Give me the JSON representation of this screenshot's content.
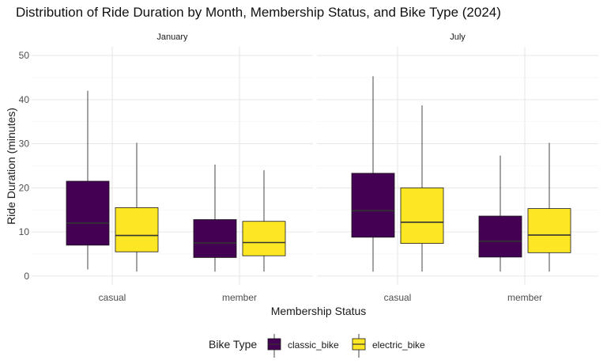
{
  "chart_data": {
    "type": "boxplot",
    "title": "Distribution of Ride Duration by Month, Membership Status, and Bike Type (2024)",
    "xlabel": "Membership Status",
    "ylabel": "Ride Duration (minutes)",
    "ylim": [
      -2,
      52
    ],
    "yticks": [
      0,
      10,
      20,
      30,
      40,
      50
    ],
    "grid": true,
    "legend_position": "bottom",
    "legend_title": "Bike Type",
    "categories": [
      "casual",
      "member"
    ],
    "series": [
      {
        "name": "classic_bike",
        "color": "#440154"
      },
      {
        "name": "electric_bike",
        "color": "#FDE725"
      }
    ],
    "facets": [
      {
        "label": "January",
        "groups": [
          {
            "category": "casual",
            "boxes": [
              {
                "series": "classic_bike",
                "min": 1.5,
                "q1": 7.0,
                "median": 12.0,
                "q3": 21.5,
                "max": 42.0
              },
              {
                "series": "electric_bike",
                "min": 1.0,
                "q1": 5.5,
                "median": 9.2,
                "q3": 15.5,
                "max": 30.2
              }
            ]
          },
          {
            "category": "member",
            "boxes": [
              {
                "series": "classic_bike",
                "min": 1.0,
                "q1": 4.2,
                "median": 7.5,
                "q3": 12.8,
                "max": 25.3
              },
              {
                "series": "electric_bike",
                "min": 1.0,
                "q1": 4.6,
                "median": 7.6,
                "q3": 12.4,
                "max": 24.0
              }
            ]
          }
        ]
      },
      {
        "label": "July",
        "groups": [
          {
            "category": "casual",
            "boxes": [
              {
                "series": "classic_bike",
                "min": 1.0,
                "q1": 8.8,
                "median": 14.8,
                "q3": 23.3,
                "max": 45.3
              },
              {
                "series": "electric_bike",
                "min": 1.0,
                "q1": 7.4,
                "median": 12.2,
                "q3": 20.0,
                "max": 38.7
              }
            ]
          },
          {
            "category": "member",
            "boxes": [
              {
                "series": "classic_bike",
                "min": 1.0,
                "q1": 4.3,
                "median": 7.9,
                "q3": 13.6,
                "max": 27.3
              },
              {
                "series": "electric_bike",
                "min": 1.0,
                "q1": 5.3,
                "median": 9.3,
                "q3": 15.3,
                "max": 30.2
              }
            ]
          }
        ]
      }
    ]
  }
}
